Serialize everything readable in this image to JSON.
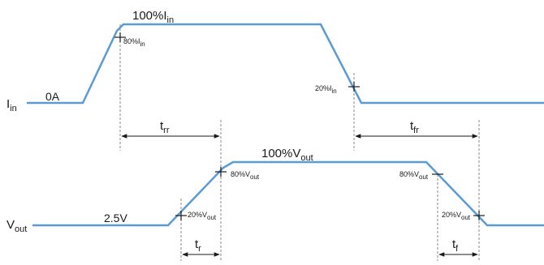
{
  "diagram": {
    "colors": {
      "waveform": "#5b9bd5",
      "ink": "#1a1a1a",
      "guide": "#888888"
    },
    "iin_trace": {
      "label_main": "I",
      "label_sub": "in",
      "low_label": "0A",
      "high_label_main": "100%I",
      "high_label_sub": "in",
      "mark_80_main": "80%I",
      "mark_80_sub": "in",
      "mark_20_main": "20%I",
      "mark_20_sub": "in"
    },
    "vout_trace": {
      "label_main": "V",
      "label_sub": "out",
      "low_label": "2.5V",
      "high_label_main": "100%V",
      "high_label_sub": "out",
      "rise_80_main": "80%V",
      "rise_80_sub": "out",
      "rise_20_main": "20%V",
      "rise_20_sub": "out",
      "fall_80_main": "80%V",
      "fall_80_sub": "out",
      "fall_20_main": "20%V",
      "fall_20_sub": "out"
    },
    "intervals": {
      "trr_main": "t",
      "trr_sub": "rr",
      "tfr_main": "t",
      "tfr_sub": "fr",
      "tr_main": "t",
      "tr_sub": "r",
      "tf_main": "t",
      "tf_sub": "f"
    }
  }
}
